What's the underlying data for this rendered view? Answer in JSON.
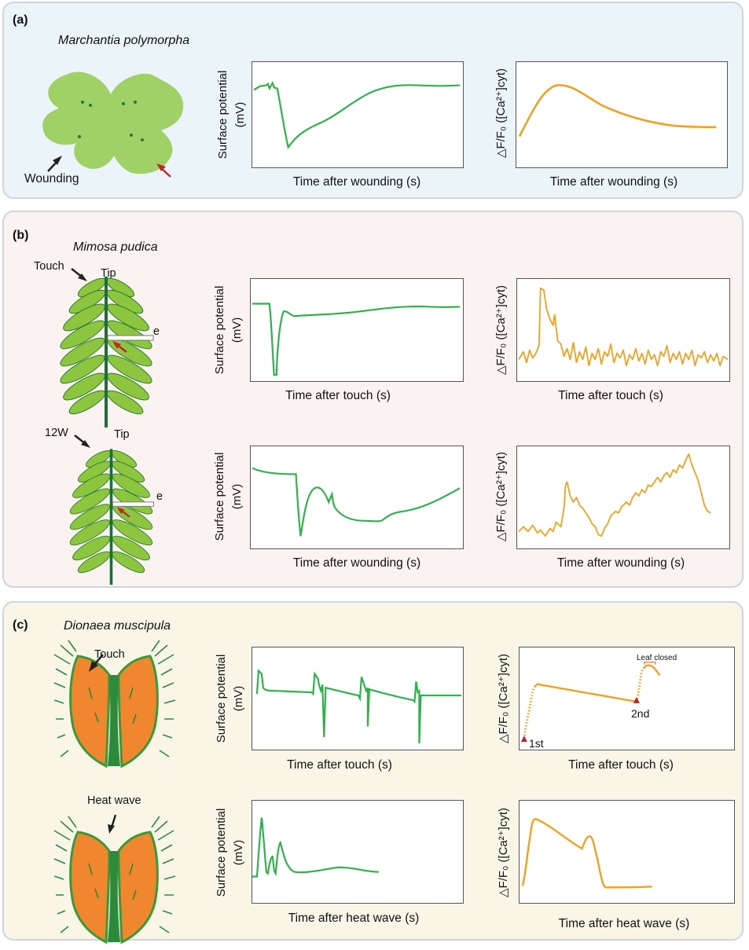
{
  "panel_a": {
    "label": "(a)",
    "species": "Marchantia polymorpha",
    "wounding_label": "Wounding",
    "graph1": {
      "ylabel_line1": "Surface potential",
      "ylabel_line2": "(mV)",
      "xlabel": "Time after wounding (s)"
    },
    "graph2": {
      "ylabel": "△F/F₀ ([Ca²⁺]cyt)",
      "xlabel": "Time after wounding (s)"
    }
  },
  "panel_b": {
    "label": "(b)",
    "species": "Mimosa pudica",
    "touch_label": "Touch",
    "tip_label_1": "Tip",
    "electrode_label_1": "e",
    "wound_label": "12W",
    "tip_label_2": "Tip",
    "electrode_label_2": "e",
    "graph1": {
      "ylabel_line1": "Surface potential",
      "ylabel_line2": "(mV)",
      "xlabel": "Time after touch (s)"
    },
    "graph2": {
      "ylabel": "△F/F₀ ([Ca²⁺]cyt)",
      "xlabel": "Time after touch (s)"
    },
    "graph3": {
      "ylabel_line1": "Surface potential",
      "ylabel_line2": "(mV)",
      "xlabel": "Time after wounding (s)"
    },
    "graph4": {
      "ylabel": "△F/F₀ ([Ca²⁺]cyt)",
      "xlabel": "Time after wounding (s)"
    }
  },
  "panel_c": {
    "label": "(c)",
    "species": "Dionaea muscipula",
    "touch_label": "Touch",
    "heat_label": "Heat wave",
    "graph1": {
      "ylabel_line1": "Surface potential",
      "ylabel_line2": "(mV)",
      "xlabel": "Time after touch (s)"
    },
    "graph2": {
      "ylabel": "△F/F₀ ([Ca²⁺]cyt)",
      "xlabel": "Time after touch (s)",
      "first_label": "1st",
      "second_label": "2nd",
      "leaf_closed": "Leaf closed"
    },
    "graph3": {
      "ylabel_line1": "Surface potential",
      "ylabel_line2": "(mV)",
      "xlabel": "Time after heat wave (s)"
    },
    "graph4": {
      "ylabel": "△F/F₀ ([Ca²⁺]cyt)",
      "xlabel": "Time after heat wave (s)"
    }
  },
  "colors": {
    "green_trace": "#2db34a",
    "orange_trace": "#f0a11e",
    "thallus": "#9fd167",
    "leaf": "#8cc63f",
    "trap": "#f0862d",
    "arrow_red": "#c1272d"
  }
}
